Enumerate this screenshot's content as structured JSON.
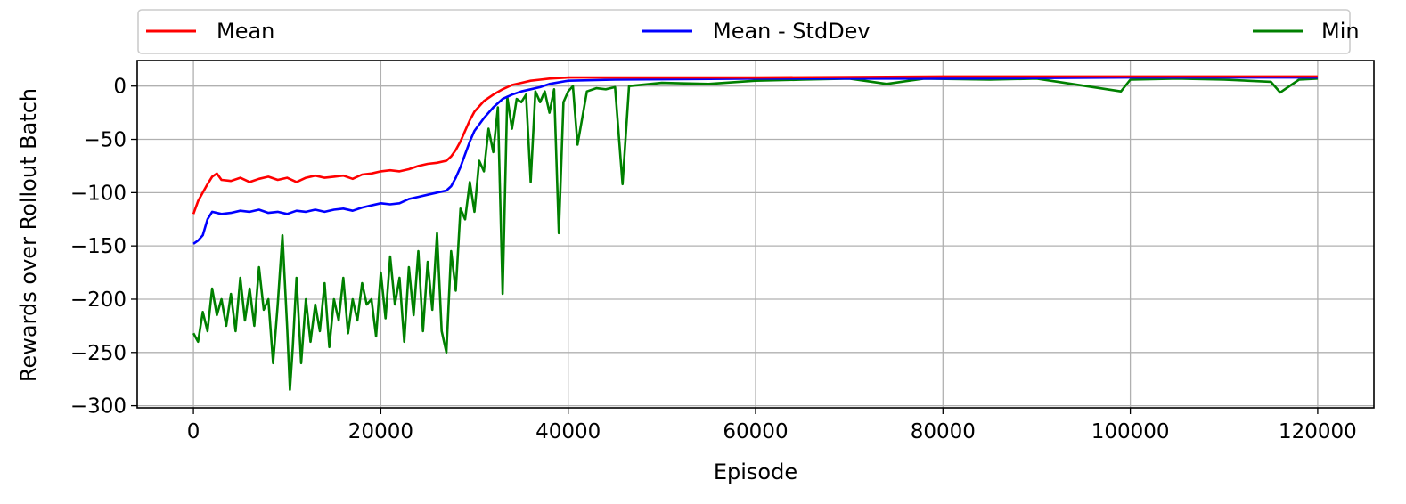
{
  "chart_data": {
    "type": "line",
    "xlabel": "Episode",
    "ylabel": "Rewards over Rollout Batch",
    "xlim": [
      -6000,
      126000
    ],
    "ylim": [
      -302,
      24
    ],
    "xticks": [
      0,
      20000,
      40000,
      60000,
      80000,
      100000,
      120000
    ],
    "xtick_labels": [
      "0",
      "20000",
      "40000",
      "60000",
      "80000",
      "100000",
      "120000"
    ],
    "yticks": [
      0,
      -50,
      -100,
      -150,
      -200,
      -250,
      -300
    ],
    "ytick_labels": [
      "0",
      "−50",
      "−100",
      "−150",
      "−200",
      "−250",
      "−300"
    ],
    "grid": true,
    "legend_position": "top, outside plot, spread across width",
    "series": [
      {
        "name": "Mean",
        "color": "#ff0000",
        "points": [
          [
            0,
            -120
          ],
          [
            500,
            -108
          ],
          [
            1000,
            -100
          ],
          [
            1500,
            -92
          ],
          [
            2000,
            -85
          ],
          [
            2500,
            -82
          ],
          [
            3000,
            -88
          ],
          [
            4000,
            -89
          ],
          [
            5000,
            -86
          ],
          [
            6000,
            -90
          ],
          [
            7000,
            -87
          ],
          [
            8000,
            -85
          ],
          [
            9000,
            -88
          ],
          [
            10000,
            -86
          ],
          [
            11000,
            -90
          ],
          [
            12000,
            -86
          ],
          [
            13000,
            -84
          ],
          [
            14000,
            -86
          ],
          [
            15000,
            -85
          ],
          [
            16000,
            -84
          ],
          [
            17000,
            -87
          ],
          [
            18000,
            -83
          ],
          [
            19000,
            -82
          ],
          [
            20000,
            -80
          ],
          [
            21000,
            -79
          ],
          [
            22000,
            -80
          ],
          [
            23000,
            -78
          ],
          [
            24000,
            -75
          ],
          [
            25000,
            -73
          ],
          [
            26000,
            -72
          ],
          [
            27000,
            -70
          ],
          [
            27500,
            -66
          ],
          [
            28000,
            -60
          ],
          [
            28500,
            -52
          ],
          [
            29000,
            -42
          ],
          [
            29500,
            -32
          ],
          [
            30000,
            -24
          ],
          [
            31000,
            -14
          ],
          [
            32000,
            -8
          ],
          [
            33000,
            -3
          ],
          [
            34000,
            1
          ],
          [
            35000,
            3
          ],
          [
            36000,
            5
          ],
          [
            37000,
            6
          ],
          [
            38000,
            7
          ],
          [
            40000,
            8
          ],
          [
            45000,
            8
          ],
          [
            60000,
            8
          ],
          [
            80000,
            9
          ],
          [
            100000,
            9
          ],
          [
            120000,
            9
          ]
        ]
      },
      {
        "name": "Mean - StdDev",
        "color": "#0000ff",
        "points": [
          [
            0,
            -148
          ],
          [
            500,
            -145
          ],
          [
            1000,
            -140
          ],
          [
            1500,
            -125
          ],
          [
            2000,
            -118
          ],
          [
            3000,
            -120
          ],
          [
            4000,
            -119
          ],
          [
            5000,
            -117
          ],
          [
            6000,
            -118
          ],
          [
            7000,
            -116
          ],
          [
            8000,
            -119
          ],
          [
            9000,
            -118
          ],
          [
            10000,
            -120
          ],
          [
            11000,
            -117
          ],
          [
            12000,
            -118
          ],
          [
            13000,
            -116
          ],
          [
            14000,
            -118
          ],
          [
            15000,
            -116
          ],
          [
            16000,
            -115
          ],
          [
            17000,
            -117
          ],
          [
            18000,
            -114
          ],
          [
            19000,
            -112
          ],
          [
            20000,
            -110
          ],
          [
            21000,
            -111
          ],
          [
            22000,
            -110
          ],
          [
            23000,
            -106
          ],
          [
            24000,
            -104
          ],
          [
            25000,
            -102
          ],
          [
            26000,
            -100
          ],
          [
            27000,
            -98
          ],
          [
            27500,
            -94
          ],
          [
            28000,
            -86
          ],
          [
            28500,
            -76
          ],
          [
            29000,
            -64
          ],
          [
            29500,
            -52
          ],
          [
            30000,
            -42
          ],
          [
            31000,
            -30
          ],
          [
            32000,
            -20
          ],
          [
            33000,
            -12
          ],
          [
            34000,
            -8
          ],
          [
            35000,
            -5
          ],
          [
            36000,
            -3
          ],
          [
            37000,
            -1
          ],
          [
            38000,
            2
          ],
          [
            40000,
            5
          ],
          [
            45000,
            6
          ],
          [
            60000,
            7
          ],
          [
            80000,
            7
          ],
          [
            100000,
            8
          ],
          [
            120000,
            8
          ]
        ]
      },
      {
        "name": "Min",
        "color": "#008000",
        "points": [
          [
            0,
            -232
          ],
          [
            500,
            -240
          ],
          [
            1000,
            -212
          ],
          [
            1500,
            -230
          ],
          [
            2000,
            -190
          ],
          [
            2500,
            -215
          ],
          [
            3000,
            -200
          ],
          [
            3500,
            -225
          ],
          [
            4000,
            -195
          ],
          [
            4500,
            -230
          ],
          [
            5000,
            -180
          ],
          [
            5500,
            -220
          ],
          [
            6000,
            -190
          ],
          [
            6500,
            -225
          ],
          [
            7000,
            -170
          ],
          [
            7500,
            -210
          ],
          [
            8000,
            -200
          ],
          [
            8500,
            -260
          ],
          [
            9000,
            -205
          ],
          [
            9500,
            -140
          ],
          [
            10000,
            -225
          ],
          [
            10300,
            -285
          ],
          [
            10600,
            -245
          ],
          [
            11000,
            -180
          ],
          [
            11500,
            -260
          ],
          [
            12000,
            -200
          ],
          [
            12500,
            -240
          ],
          [
            13000,
            -205
          ],
          [
            13500,
            -230
          ],
          [
            14000,
            -185
          ],
          [
            14500,
            -245
          ],
          [
            15000,
            -200
          ],
          [
            15500,
            -220
          ],
          [
            16000,
            -180
          ],
          [
            16500,
            -232
          ],
          [
            17000,
            -200
          ],
          [
            17500,
            -220
          ],
          [
            18000,
            -185
          ],
          [
            18500,
            -205
          ],
          [
            19000,
            -200
          ],
          [
            19500,
            -235
          ],
          [
            20000,
            -175
          ],
          [
            20500,
            -218
          ],
          [
            21000,
            -160
          ],
          [
            21500,
            -205
          ],
          [
            22000,
            -180
          ],
          [
            22500,
            -240
          ],
          [
            23000,
            -170
          ],
          [
            23500,
            -215
          ],
          [
            24000,
            -155
          ],
          [
            24500,
            -230
          ],
          [
            25000,
            -165
          ],
          [
            25500,
            -210
          ],
          [
            26000,
            -138
          ],
          [
            26500,
            -230
          ],
          [
            27000,
            -250
          ],
          [
            27500,
            -155
          ],
          [
            28000,
            -192
          ],
          [
            28500,
            -115
          ],
          [
            29000,
            -125
          ],
          [
            29500,
            -90
          ],
          [
            30000,
            -118
          ],
          [
            30500,
            -70
          ],
          [
            31000,
            -80
          ],
          [
            31500,
            -40
          ],
          [
            32000,
            -62
          ],
          [
            32500,
            -20
          ],
          [
            33000,
            -195
          ],
          [
            33500,
            -10
          ],
          [
            34000,
            -40
          ],
          [
            34500,
            -12
          ],
          [
            35000,
            -15
          ],
          [
            35500,
            -8
          ],
          [
            36000,
            -90
          ],
          [
            36500,
            -5
          ],
          [
            37000,
            -15
          ],
          [
            37500,
            -5
          ],
          [
            38000,
            -25
          ],
          [
            38500,
            -3
          ],
          [
            39000,
            -138
          ],
          [
            39500,
            -15
          ],
          [
            40000,
            -5
          ],
          [
            40500,
            0
          ],
          [
            41000,
            -55
          ],
          [
            42000,
            -5
          ],
          [
            43000,
            -2
          ],
          [
            44000,
            -3
          ],
          [
            45000,
            -1
          ],
          [
            45800,
            -92
          ],
          [
            46500,
            0
          ],
          [
            50000,
            3
          ],
          [
            55000,
            2
          ],
          [
            60000,
            5
          ],
          [
            65000,
            6
          ],
          [
            70000,
            7
          ],
          [
            74000,
            2
          ],
          [
            78000,
            7
          ],
          [
            85000,
            6
          ],
          [
            90000,
            7
          ],
          [
            99000,
            -5
          ],
          [
            100000,
            6
          ],
          [
            105000,
            7
          ],
          [
            110000,
            6
          ],
          [
            115000,
            4
          ],
          [
            116000,
            -6
          ],
          [
            118000,
            6
          ],
          [
            120000,
            7
          ]
        ]
      }
    ]
  }
}
